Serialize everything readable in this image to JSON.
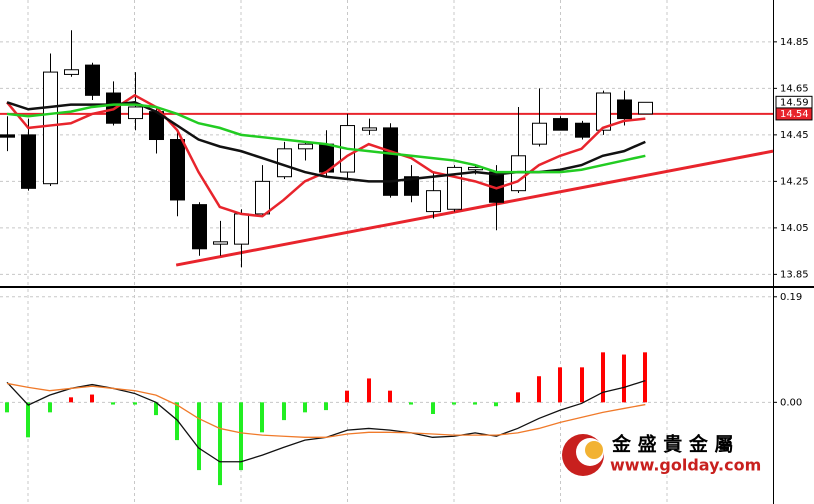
{
  "chart_data": [
    {
      "type": "candlestick",
      "open": [
        14.45,
        14.45,
        14.24,
        14.71,
        14.75,
        14.63,
        14.52,
        14.55,
        14.43,
        14.15,
        13.98,
        13.98,
        14.11,
        14.27,
        14.39,
        14.41,
        14.29,
        14.47,
        14.48,
        14.27,
        14.12,
        14.13,
        14.3,
        14.29,
        14.21,
        14.41,
        14.52,
        14.5,
        14.47,
        14.6,
        14.54
      ],
      "high": [
        14.53,
        14.52,
        14.8,
        14.9,
        14.76,
        14.68,
        14.72,
        14.57,
        14.47,
        14.16,
        14.08,
        14.13,
        14.32,
        14.42,
        14.42,
        14.47,
        14.54,
        14.52,
        14.5,
        14.32,
        14.29,
        14.32,
        14.32,
        14.32,
        14.57,
        14.65,
        14.53,
        14.51,
        14.64,
        14.64,
        14.59
      ],
      "low": [
        14.38,
        14.21,
        14.23,
        14.7,
        14.6,
        14.49,
        14.47,
        14.37,
        14.1,
        13.93,
        13.93,
        13.88,
        14.1,
        14.26,
        14.34,
        14.27,
        14.26,
        14.45,
        14.18,
        14.16,
        14.09,
        14.12,
        14.28,
        14.04,
        14.2,
        14.4,
        14.47,
        14.43,
        14.45,
        14.49,
        14.54
      ],
      "close": [
        14.44,
        14.22,
        14.72,
        14.73,
        14.62,
        14.5,
        14.57,
        14.43,
        14.17,
        13.96,
        13.99,
        14.11,
        14.25,
        14.39,
        14.41,
        14.29,
        14.49,
        14.48,
        14.19,
        14.19,
        14.21,
        14.31,
        14.31,
        14.16,
        14.36,
        14.5,
        14.47,
        14.44,
        14.63,
        14.52,
        14.59
      ],
      "up_color": "#ffffff",
      "down_color": "#000000",
      "lines": [
        {
          "color": "#e8242c",
          "values": [
            14.59,
            14.48,
            14.49,
            14.5,
            14.54,
            14.56,
            14.62,
            14.57,
            14.47,
            14.29,
            14.14,
            14.11,
            14.1,
            14.17,
            14.25,
            14.29,
            14.36,
            14.41,
            14.38,
            14.35,
            14.29,
            14.27,
            14.25,
            14.22,
            14.25,
            14.32,
            14.36,
            14.39,
            14.48,
            14.51,
            14.52
          ]
        },
        {
          "color": "#111111",
          "values": [
            14.59,
            14.56,
            14.57,
            14.58,
            14.58,
            14.58,
            14.59,
            14.55,
            14.49,
            14.43,
            14.4,
            14.38,
            14.35,
            14.32,
            14.29,
            14.27,
            14.26,
            14.25,
            14.25,
            14.26,
            14.27,
            14.28,
            14.29,
            14.28,
            14.29,
            14.29,
            14.3,
            14.32,
            14.36,
            14.38,
            14.42
          ]
        },
        {
          "color": "#22cc22",
          "values": [
            14.54,
            14.53,
            14.54,
            14.55,
            14.57,
            14.58,
            14.58,
            14.57,
            14.54,
            14.5,
            14.48,
            14.45,
            14.44,
            14.43,
            14.42,
            14.41,
            14.39,
            14.38,
            14.37,
            14.36,
            14.35,
            14.34,
            14.32,
            14.29,
            14.29,
            14.29,
            14.29,
            14.3,
            14.32,
            14.34,
            14.36
          ]
        }
      ],
      "hline": 14.54,
      "hline_color": "#e8242c",
      "trendline": {
        "x": [
          7.95,
          36.0
        ],
        "y": [
          13.89,
          14.38
        ],
        "color": "#e8242c"
      },
      "price_labels": [
        14.59,
        14.54
      ],
      "price_label_colors": [
        "#ffffff",
        "#e8242c"
      ],
      "xlim": [
        -0.33,
        36.0
      ],
      "ylim": [
        13.8,
        15.03
      ],
      "yticks": [
        13.85,
        14.05,
        14.25,
        14.45,
        14.65,
        14.85
      ],
      "grid": true
    },
    {
      "type": "macd",
      "values": [
        -0.018,
        -0.063,
        -0.018,
        0.009,
        0.014,
        -0.004,
        -0.004,
        -0.023,
        -0.068,
        -0.122,
        -0.149,
        -0.122,
        -0.054,
        -0.032,
        -0.018,
        -0.014,
        0.021,
        0.043,
        0.021,
        -0.004,
        -0.021,
        -0.004,
        -0.004,
        -0.007,
        0.018,
        0.047,
        0.063,
        0.063,
        0.09,
        0.086,
        0.09
      ],
      "up_color": "#ff0000",
      "down_color": "#22ee22",
      "lines": [
        {
          "color": "#111111",
          "values": [
            0.036,
            -0.005,
            0.013,
            0.025,
            0.032,
            0.025,
            0.016,
            0.0,
            -0.032,
            -0.082,
            -0.107,
            -0.107,
            -0.095,
            -0.081,
            -0.068,
            -0.063,
            -0.05,
            -0.047,
            -0.05,
            -0.055,
            -0.063,
            -0.061,
            -0.055,
            -0.061,
            -0.047,
            -0.029,
            -0.014,
            -0.002,
            0.018,
            0.027,
            0.039
          ]
        },
        {
          "color": "#f07a2a",
          "values": [
            0.034,
            0.027,
            0.021,
            0.025,
            0.029,
            0.025,
            0.021,
            0.013,
            -0.005,
            -0.029,
            -0.047,
            -0.055,
            -0.059,
            -0.061,
            -0.063,
            -0.063,
            -0.057,
            -0.054,
            -0.054,
            -0.055,
            -0.057,
            -0.059,
            -0.059,
            -0.059,
            -0.055,
            -0.047,
            -0.036,
            -0.027,
            -0.018,
            -0.011,
            -0.004
          ]
        }
      ],
      "xlim": [
        -0.33,
        36.0
      ],
      "ylim": [
        -0.183,
        0.204
      ],
      "yticks": [
        {
          "value": 0,
          "label": "0.00"
        },
        0.19
      ],
      "grid": true
    }
  ],
  "watermark": {
    "name": "金 盛 貴 金 屬",
    "url": "www.golday.com"
  }
}
